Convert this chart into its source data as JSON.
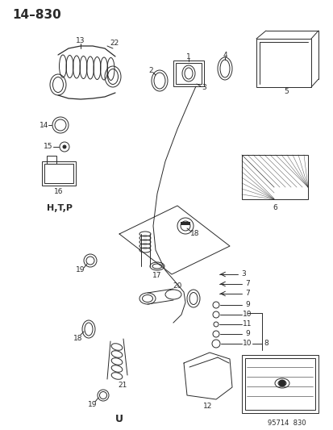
{
  "title": "14–830",
  "footer": "95714  830",
  "bg_color": "#ffffff",
  "line_color": "#2a2a2a",
  "htp_label": "H,T,P",
  "u_label": "U",
  "figsize": [
    4.14,
    5.33
  ],
  "dpi": 100
}
